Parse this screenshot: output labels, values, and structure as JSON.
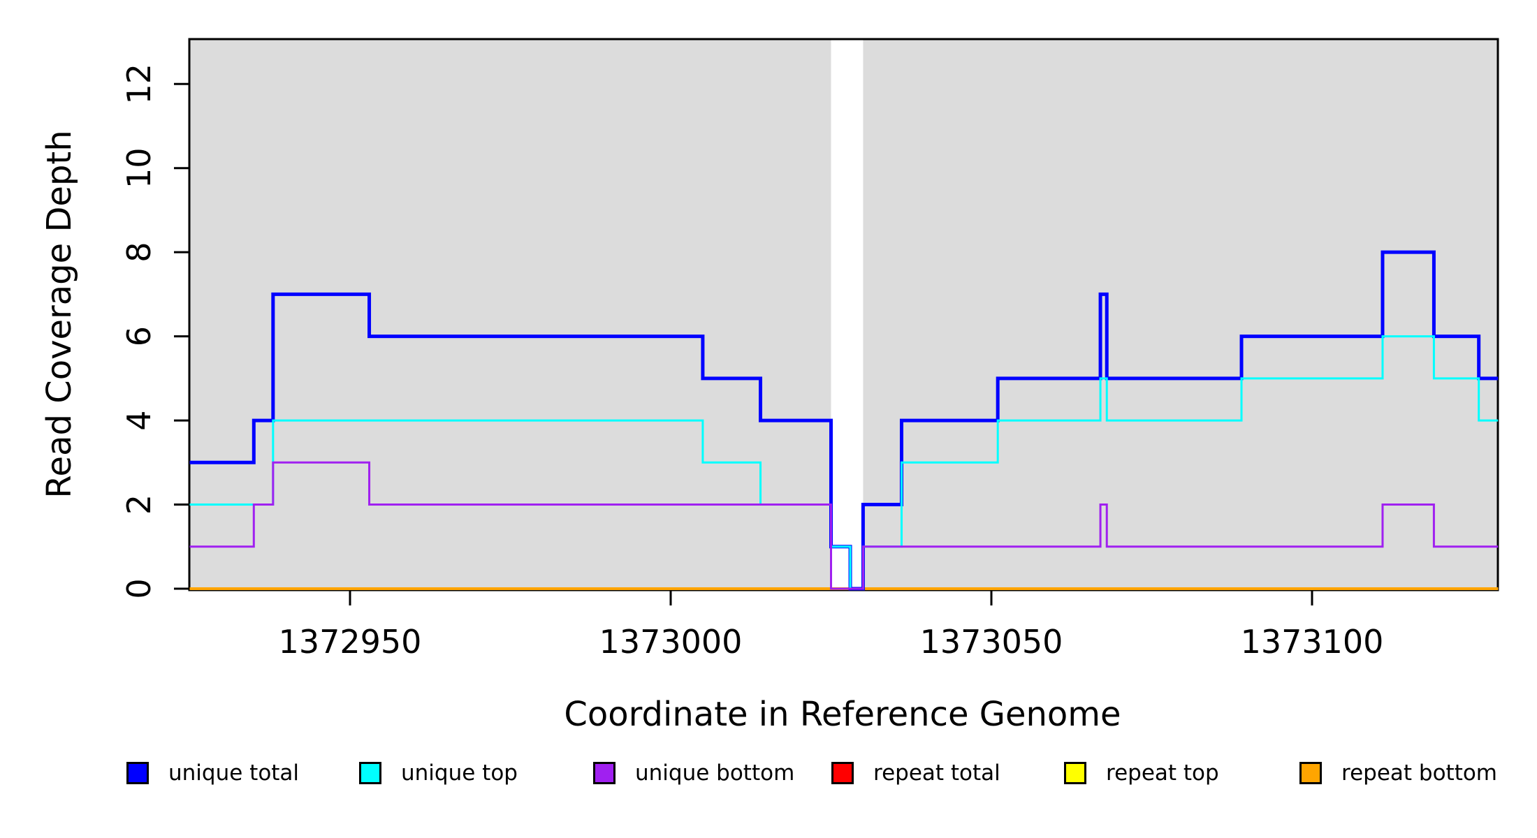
{
  "chart_data": {
    "type": "line",
    "subtype": "step-coverage-plot",
    "title": "",
    "xlabel": "Coordinate in Reference Genome",
    "ylabel": "Read Coverage Depth",
    "xlim": [
      1372925,
      1373129
    ],
    "ylim": [
      0,
      13.1
    ],
    "x_ticks": [
      1372950,
      1373000,
      1373050,
      1373100
    ],
    "y_ticks": [
      0,
      2,
      4,
      6,
      8,
      10,
      12
    ],
    "grid": false,
    "legend_position": "bottom",
    "panel": {
      "color": "#DCDCDC",
      "border_color": "#000000",
      "shaded_regions": [
        [
          1372925,
          1373025
        ],
        [
          1373030,
          1373129
        ]
      ],
      "gap_region": [
        1373025,
        1373030
      ]
    },
    "series": [
      {
        "label": "unique total",
        "color": "#0000FF",
        "stroke_width": 5,
        "z": 4,
        "steps": [
          [
            1372925,
            3
          ],
          [
            1372935,
            4
          ],
          [
            1372938,
            7
          ],
          [
            1372953,
            6
          ],
          [
            1373005,
            5
          ],
          [
            1373014,
            4
          ],
          [
            1373025,
            1
          ],
          [
            1373028,
            0
          ],
          [
            1373030,
            2
          ],
          [
            1373036,
            4
          ],
          [
            1373051,
            5
          ],
          [
            1373067,
            7
          ],
          [
            1373068,
            5
          ],
          [
            1373089,
            6
          ],
          [
            1373111,
            8
          ],
          [
            1373119,
            6
          ],
          [
            1373126,
            5
          ]
        ]
      },
      {
        "label": "unique top",
        "color": "#00FFFF",
        "stroke_width": 3,
        "z": 5,
        "steps": [
          [
            1372925,
            2
          ],
          [
            1372938,
            4
          ],
          [
            1373005,
            3
          ],
          [
            1373014,
            2
          ],
          [
            1373025,
            1
          ],
          [
            1373028,
            0
          ],
          [
            1373030,
            1
          ],
          [
            1373036,
            3
          ],
          [
            1373051,
            4
          ],
          [
            1373067,
            5
          ],
          [
            1373068,
            4
          ],
          [
            1373089,
            5
          ],
          [
            1373111,
            6
          ],
          [
            1373119,
            5
          ],
          [
            1373126,
            4
          ]
        ]
      },
      {
        "label": "unique bottom",
        "color": "#A020F0",
        "stroke_width": 3,
        "z": 6,
        "steps": [
          [
            1372925,
            1
          ],
          [
            1372935,
            2
          ],
          [
            1372938,
            3
          ],
          [
            1372953,
            2
          ],
          [
            1373025,
            0
          ],
          [
            1373030,
            1
          ],
          [
            1373067,
            2
          ],
          [
            1373068,
            1
          ],
          [
            1373111,
            2
          ],
          [
            1373119,
            1
          ]
        ]
      },
      {
        "label": "repeat total",
        "color": "#FF0000",
        "stroke_width": 3,
        "z": 1,
        "steps": [
          [
            1372925,
            0
          ]
        ]
      },
      {
        "label": "repeat top",
        "color": "#FFFF00",
        "stroke_width": 3,
        "z": 2,
        "steps": [
          [
            1372925,
            0
          ]
        ]
      },
      {
        "label": "repeat bottom",
        "color": "#FFA500",
        "stroke_width": 4,
        "z": 3,
        "steps": [
          [
            1372925,
            0
          ]
        ]
      }
    ]
  }
}
